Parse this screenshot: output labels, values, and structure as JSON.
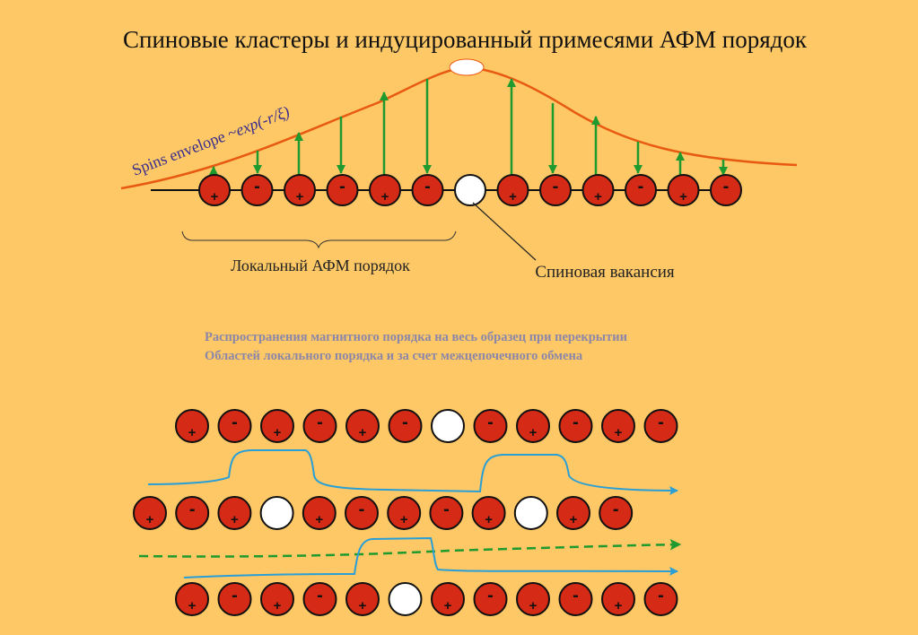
{
  "title": "Спиновые кластеры и индуцированный примесями  АФМ порядок",
  "envelope_label": "Spins envelope ~",
  "envelope_formula": "exp(-r/ξ)",
  "local_order_label": "Локальный АФМ порядок",
  "vacancy_label": "Спиновая вакансия",
  "note": {
    "line1": "Распространения магнитного порядка на весь образец при перекрытии",
    "line2": "Областей локального порядка и за счет межцепочечного обмена"
  },
  "chain_top": [
    "+",
    "-",
    "+",
    "-",
    "+",
    "-",
    "v",
    "+",
    "-",
    "+",
    "-",
    "+",
    "-"
  ],
  "chain_row1": [
    "+",
    "-",
    "+",
    "-",
    "+",
    "-",
    "v",
    "-",
    "+",
    "-",
    "+",
    "-"
  ],
  "chain_row2": [
    "+",
    "-",
    "+",
    "v",
    "+",
    "-",
    "+",
    "-",
    "+",
    "v",
    "+",
    "-"
  ],
  "chain_row3": [
    "+",
    "-",
    "+",
    "-",
    "+",
    "v",
    "+",
    "-",
    "+",
    "-",
    "+",
    "-"
  ],
  "colors": {
    "background": "#fdc865",
    "site_fill": "#d42a16",
    "vacancy_fill": "#ffffff",
    "envelope": "#e85a12",
    "spin_arrow": "#1f9a2e",
    "order_line": "#2a9fd6",
    "interchain_dashed": "#1f9a2e",
    "note_text": "#8c87a8",
    "title_text": "#111111"
  }
}
